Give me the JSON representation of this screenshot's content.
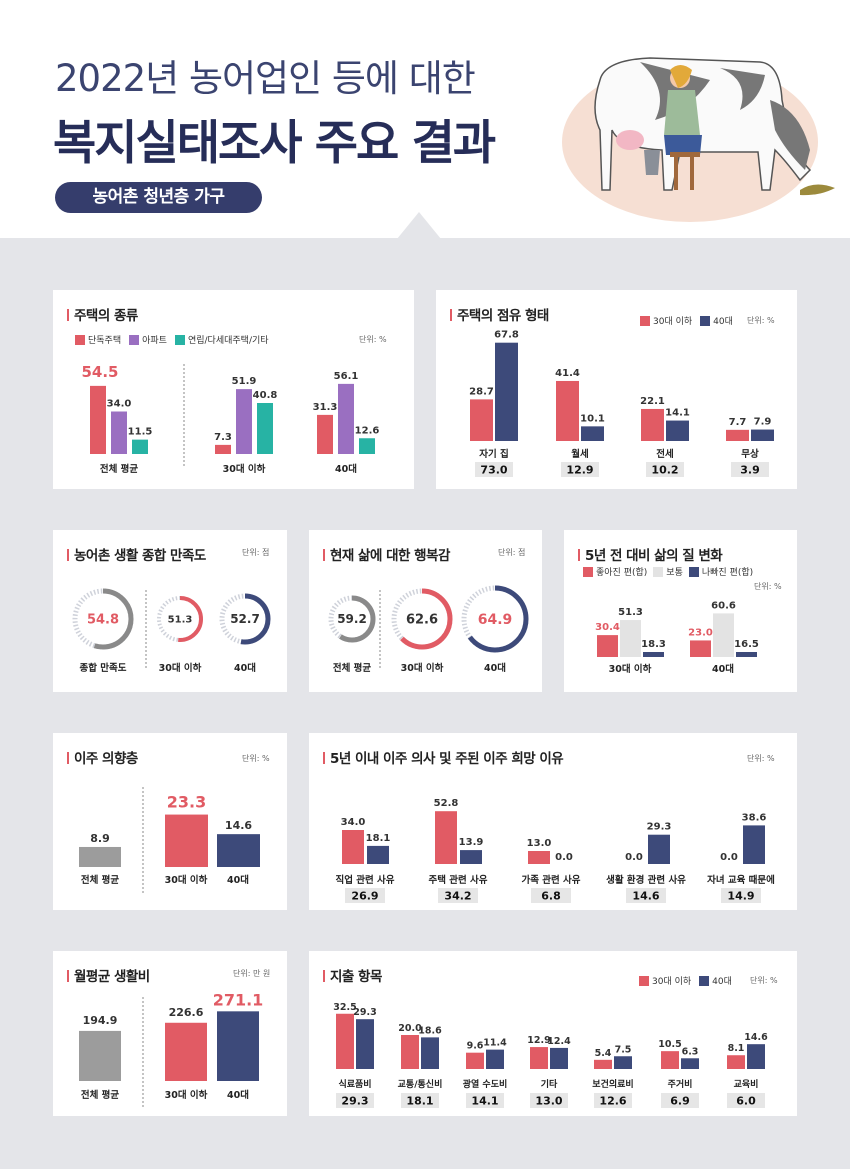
{
  "header": {
    "title_line1": "2022년 농어업인 등에 대한",
    "title_line2": "복지실태조사 주요 결과",
    "subtitle": "농어촌 청년층 가구"
  },
  "colors": {
    "red": "#e15b64",
    "navy": "#3d4a7a",
    "purple": "#9a6fc1",
    "teal": "#27b3a4",
    "gray": "#9c9c9c",
    "light": "#e3e3e3"
  },
  "chart_data": [
    {
      "id": "housing-type",
      "type": "bar",
      "title": "주택의 종류",
      "unit": "단위: %",
      "categories": [
        "전체 평균",
        "30대 이하",
        "40대"
      ],
      "series": [
        {
          "name": "단독주택",
          "values": [
            54.5,
            7.3,
            31.3
          ]
        },
        {
          "name": "아파트",
          "values": [
            34.0,
            51.9,
            56.1
          ]
        },
        {
          "name": "연립/다세대주택/기타",
          "values": [
            11.5,
            40.8,
            12.6
          ]
        }
      ]
    },
    {
      "id": "tenure",
      "type": "bar",
      "title": "주택의 점유 형태",
      "unit": "단위: %",
      "categories": [
        "자기 집",
        "월세",
        "전세",
        "무상"
      ],
      "totals": [
        "73.0",
        "12.9",
        "10.2",
        "3.9"
      ],
      "series": [
        {
          "name": "30대 이하",
          "values": [
            28.7,
            41.4,
            22.1,
            7.7
          ]
        },
        {
          "name": "40대",
          "values": [
            67.8,
            10.1,
            14.1,
            7.9
          ]
        }
      ]
    },
    {
      "id": "satisfaction",
      "type": "pie",
      "title": "농어촌 생활 종합 만족도",
      "unit": "단위: 점",
      "categories": [
        "종합 만족도",
        "30대 이하",
        "40대"
      ],
      "values": [
        54.8,
        51.3,
        52.7
      ]
    },
    {
      "id": "happiness",
      "type": "pie",
      "title": "현재 삶에 대한 행복감",
      "unit": "단위: 점",
      "categories": [
        "전체 평균",
        "30대 이하",
        "40대"
      ],
      "values": [
        59.2,
        62.6,
        64.9
      ]
    },
    {
      "id": "quality-change",
      "type": "bar",
      "title": "5년 전 대비 삶의 질 변화",
      "unit": "단위: %",
      "categories": [
        "30대 이하",
        "40대"
      ],
      "series": [
        {
          "name": "좋아진 편(합)",
          "values": [
            30.4,
            23.0
          ]
        },
        {
          "name": "보통",
          "values": [
            51.3,
            60.6
          ]
        },
        {
          "name": "나빠진 편(합)",
          "values": [
            18.3,
            16.5
          ]
        }
      ]
    },
    {
      "id": "migration-intent",
      "type": "bar",
      "title": "이주 의향층",
      "unit": "단위: %",
      "categories": [
        "전체 평균",
        "30대 이하",
        "40대"
      ],
      "values": [
        8.9,
        23.3,
        14.6
      ]
    },
    {
      "id": "migration-reason",
      "type": "bar",
      "title": "5년 이내 이주 의사 및 주된 이주 희망 이유",
      "unit": "단위: %",
      "categories": [
        "직업 관련 사유",
        "주택 관련 사유",
        "가족 관련 사유",
        "생활 환경 관련 사유",
        "자녀 교육 때문에"
      ],
      "totals": [
        "26.9",
        "34.2",
        "6.8",
        "14.6",
        "14.9"
      ],
      "series": [
        {
          "name": "30대 이하",
          "values": [
            34.0,
            52.8,
            13.0,
            0.0,
            0.0
          ]
        },
        {
          "name": "40대",
          "values": [
            18.1,
            13.9,
            0.0,
            29.3,
            38.6
          ]
        }
      ]
    },
    {
      "id": "living-cost",
      "type": "bar",
      "title": "월평균 생활비",
      "unit": "단위: 만 원",
      "categories": [
        "전체 평균",
        "30대 이하",
        "40대"
      ],
      "values": [
        194.9,
        226.6,
        271.1
      ]
    },
    {
      "id": "expenditure",
      "type": "bar",
      "title": "지출 항목",
      "unit": "단위: %",
      "categories": [
        "식료품비",
        "교통/통신비",
        "광열 수도비",
        "기타",
        "보건의료비",
        "주거비",
        "교육비"
      ],
      "totals": [
        "29.3",
        "18.1",
        "14.1",
        "13.0",
        "12.6",
        "6.9",
        "6.0"
      ],
      "series": [
        {
          "name": "30대 이하",
          "values": [
            32.5,
            20.0,
            9.6,
            12.9,
            5.4,
            10.5,
            8.1
          ]
        },
        {
          "name": "40대",
          "values": [
            29.3,
            18.6,
            11.4,
            12.4,
            7.5,
            6.3,
            14.6
          ]
        }
      ]
    }
  ]
}
